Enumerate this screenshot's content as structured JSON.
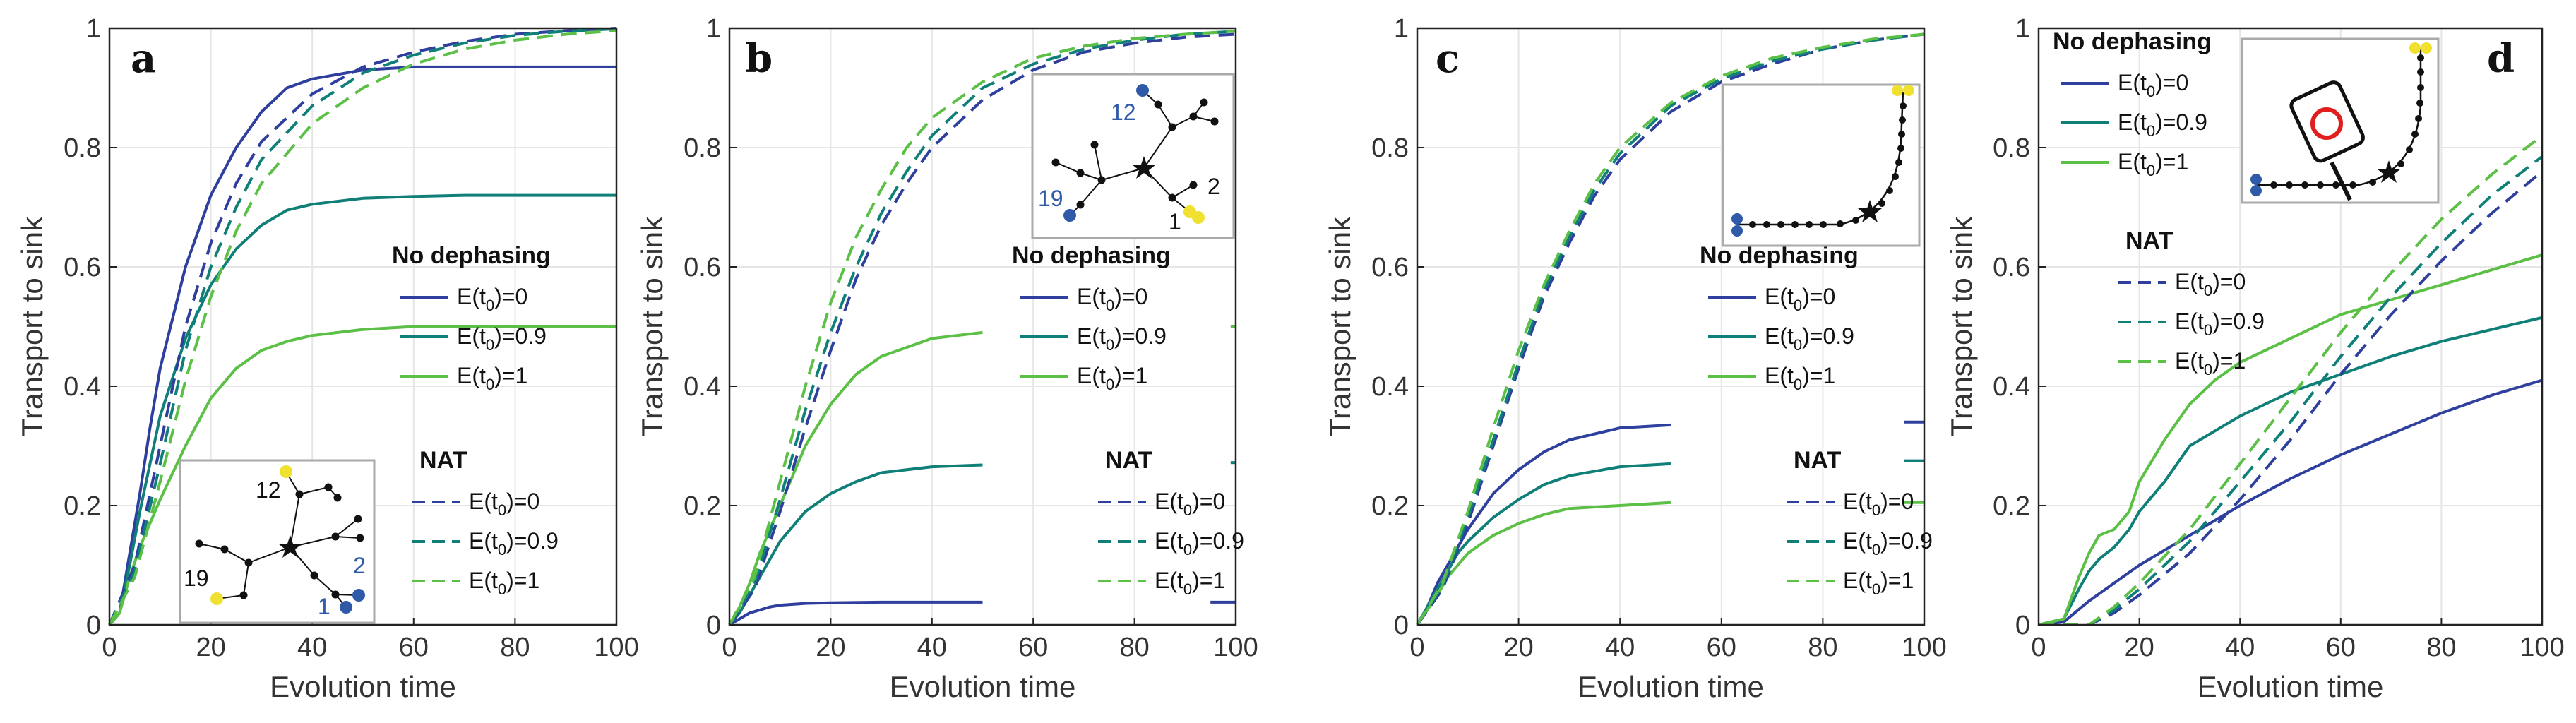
{
  "figure": {
    "axis_color": "#222222",
    "grid_color": "#e6e6e6",
    "colors": {
      "blue": "#2e3f9e",
      "teal": "#0f7f78",
      "green": "#5cc047",
      "node": "#111111",
      "blue_node": "#2e5aa8",
      "yellow_node": "#f0e030",
      "sign_red": "#e21e1e"
    },
    "legend": {
      "title_no_dephasing": "No dephasing",
      "title_nat": "NAT",
      "entries": [
        {
          "prefix": "E(t",
          "sub": "0",
          "suffix": ")=0",
          "color": "blue"
        },
        {
          "prefix": "E(t",
          "sub": "0",
          "suffix": ")=0.9",
          "color": "teal"
        },
        {
          "prefix": "E(t",
          "sub": "0",
          "suffix": ")=1",
          "color": "green"
        }
      ]
    },
    "inset_labels": {
      "a": [
        "12",
        "2",
        "19",
        "1"
      ],
      "b": [
        "12",
        "2",
        "19",
        "1"
      ]
    }
  },
  "chart_data": [
    {
      "panel": "a",
      "type": "line",
      "xlabel": "Evolution time",
      "ylabel": "Transport to sink",
      "xlim": [
        0,
        100
      ],
      "ylim": [
        0,
        1
      ],
      "xticks": [
        "0",
        "20",
        "40",
        "60",
        "80",
        "100"
      ],
      "yticks": [
        "0",
        "0.2",
        "0.4",
        "0.6",
        "0.8",
        "1"
      ],
      "series": [
        {
          "name": "No dephasing E(t0)=0",
          "style": "solid",
          "color": "blue",
          "x": [
            0,
            2,
            4,
            6,
            8,
            10,
            15,
            20,
            25,
            30,
            35,
            40,
            50,
            60,
            70,
            80,
            100
          ],
          "y": [
            0,
            0.02,
            0.12,
            0.22,
            0.33,
            0.43,
            0.6,
            0.72,
            0.8,
            0.86,
            0.9,
            0.915,
            0.93,
            0.935,
            0.935,
            0.935,
            0.935
          ]
        },
        {
          "name": "No dephasing E(t0)=0.9",
          "style": "solid",
          "color": "teal",
          "x": [
            0,
            2,
            4,
            6,
            8,
            10,
            15,
            20,
            25,
            30,
            35,
            40,
            50,
            60,
            70,
            80,
            100
          ],
          "y": [
            0,
            0.02,
            0.1,
            0.19,
            0.27,
            0.35,
            0.48,
            0.57,
            0.63,
            0.67,
            0.695,
            0.705,
            0.715,
            0.718,
            0.72,
            0.72,
            0.72
          ]
        },
        {
          "name": "No dephasing E(t0)=1",
          "style": "solid",
          "color": "green",
          "x": [
            0,
            2,
            4,
            6,
            8,
            10,
            15,
            20,
            25,
            30,
            35,
            40,
            50,
            60,
            70,
            80,
            100
          ],
          "y": [
            0,
            0.02,
            0.08,
            0.13,
            0.17,
            0.21,
            0.3,
            0.38,
            0.43,
            0.46,
            0.475,
            0.485,
            0.495,
            0.5,
            0.5,
            0.5,
            0.5
          ]
        },
        {
          "name": "NAT E(t0)=0",
          "style": "dashed",
          "color": "blue",
          "x": [
            0,
            5,
            10,
            15,
            20,
            25,
            30,
            40,
            50,
            60,
            70,
            80,
            90,
            100
          ],
          "y": [
            0,
            0.1,
            0.3,
            0.5,
            0.64,
            0.74,
            0.81,
            0.89,
            0.935,
            0.96,
            0.978,
            0.99,
            0.996,
            1.0
          ]
        },
        {
          "name": "NAT E(t0)=0.9",
          "style": "dashed",
          "color": "teal",
          "x": [
            0,
            5,
            10,
            15,
            20,
            25,
            30,
            40,
            50,
            60,
            70,
            80,
            90,
            100
          ],
          "y": [
            0,
            0.09,
            0.27,
            0.46,
            0.6,
            0.7,
            0.78,
            0.87,
            0.925,
            0.955,
            0.975,
            0.988,
            0.995,
            0.999
          ]
        },
        {
          "name": "NAT E(t0)=1",
          "style": "dashed",
          "color": "green",
          "x": [
            0,
            5,
            10,
            15,
            20,
            25,
            30,
            40,
            50,
            60,
            70,
            80,
            90,
            100
          ],
          "y": [
            0,
            0.08,
            0.24,
            0.41,
            0.55,
            0.66,
            0.74,
            0.84,
            0.9,
            0.94,
            0.965,
            0.98,
            0.99,
            0.996
          ]
        }
      ]
    },
    {
      "panel": "b",
      "type": "line",
      "xlabel": "Evolution time",
      "ylabel": "Transport to sink",
      "xlim": [
        0,
        100
      ],
      "ylim": [
        0,
        1
      ],
      "xticks": [
        "0",
        "20",
        "40",
        "60",
        "80",
        "100"
      ],
      "yticks": [
        "0",
        "0.2",
        "0.4",
        "0.6",
        "0.8",
        "1"
      ],
      "series": [
        {
          "name": "No dephasing E(t0)=0",
          "style": "solid",
          "color": "blue",
          "x": [
            0,
            2,
            4,
            6,
            8,
            10,
            15,
            20,
            30,
            40,
            50
          ],
          "y": [
            0,
            0.01,
            0.02,
            0.025,
            0.03,
            0.033,
            0.036,
            0.037,
            0.038,
            0.038,
            0.038
          ]
        },
        {
          "name": "No dephasing E(t0)=0.9",
          "style": "solid",
          "color": "teal",
          "x": [
            0,
            2,
            4,
            6,
            8,
            10,
            15,
            20,
            25,
            30,
            40,
            50
          ],
          "y": [
            0,
            0.02,
            0.05,
            0.08,
            0.11,
            0.14,
            0.19,
            0.22,
            0.24,
            0.255,
            0.265,
            0.268
          ]
        },
        {
          "name": "No dephasing E(t0)=1",
          "style": "solid",
          "color": "green",
          "x": [
            0,
            2,
            4,
            6,
            8,
            10,
            15,
            20,
            25,
            30,
            40,
            50
          ],
          "y": [
            0,
            0.03,
            0.07,
            0.12,
            0.16,
            0.2,
            0.3,
            0.37,
            0.42,
            0.45,
            0.48,
            0.49
          ]
        },
        {
          "name": "NAT E(t0)=0",
          "style": "dashed",
          "color": "blue",
          "x": [
            0,
            5,
            10,
            15,
            20,
            25,
            30,
            35,
            40,
            50,
            60,
            70,
            80,
            90,
            100
          ],
          "y": [
            0,
            0.06,
            0.19,
            0.33,
            0.46,
            0.58,
            0.67,
            0.74,
            0.8,
            0.88,
            0.93,
            0.96,
            0.975,
            0.985,
            0.99
          ]
        },
        {
          "name": "NAT E(t0)=0.9",
          "style": "dashed",
          "color": "teal",
          "x": [
            0,
            5,
            10,
            15,
            20,
            25,
            30,
            35,
            40,
            50,
            60,
            70,
            80,
            90,
            100
          ],
          "y": [
            0,
            0.07,
            0.21,
            0.36,
            0.49,
            0.6,
            0.69,
            0.76,
            0.82,
            0.9,
            0.94,
            0.965,
            0.98,
            0.99,
            0.995
          ]
        },
        {
          "name": "NAT E(t0)=1",
          "style": "dashed",
          "color": "green",
          "x": [
            0,
            5,
            10,
            15,
            20,
            25,
            30,
            35,
            40,
            50,
            60,
            70,
            80,
            90,
            100
          ],
          "y": [
            0,
            0.08,
            0.24,
            0.4,
            0.54,
            0.65,
            0.73,
            0.8,
            0.85,
            0.91,
            0.95,
            0.97,
            0.983,
            0.99,
            0.995
          ]
        },
        {
          "name": "E(t0)=0.9 asymptote",
          "style": "solid",
          "color": "teal",
          "x": [
            99,
            100
          ],
          "y": [
            0.272,
            0.272
          ]
        },
        {
          "name": "E(t0)=1 asymptote",
          "style": "solid",
          "color": "green",
          "x": [
            99,
            100
          ],
          "y": [
            0.5,
            0.5
          ]
        },
        {
          "name": "E(t0)=0 asymptote",
          "style": "solid",
          "color": "blue",
          "x": [
            95,
            100
          ],
          "y": [
            0.038,
            0.038
          ]
        }
      ]
    },
    {
      "panel": "c",
      "type": "line",
      "xlabel": "Evolution time",
      "ylabel": "Transport to sink",
      "xlim": [
        0,
        100
      ],
      "ylim": [
        0,
        1
      ],
      "xticks": [
        "0",
        "20",
        "40",
        "60",
        "80",
        "100"
      ],
      "yticks": [
        "0",
        "0.2",
        "0.4",
        "0.6",
        "0.8",
        "1"
      ],
      "series": [
        {
          "name": "No dephasing E(t0)=0",
          "style": "solid",
          "color": "blue",
          "x": [
            0,
            2,
            4,
            6,
            8,
            10,
            15,
            20,
            25,
            30,
            40,
            50
          ],
          "y": [
            0,
            0.03,
            0.07,
            0.1,
            0.13,
            0.16,
            0.22,
            0.26,
            0.29,
            0.31,
            0.33,
            0.335
          ]
        },
        {
          "name": "No dephasing E(t0)=0.9",
          "style": "solid",
          "color": "teal",
          "x": [
            0,
            2,
            4,
            6,
            8,
            10,
            15,
            20,
            25,
            30,
            40,
            50
          ],
          "y": [
            0,
            0.03,
            0.06,
            0.09,
            0.12,
            0.14,
            0.18,
            0.21,
            0.235,
            0.25,
            0.265,
            0.27
          ]
        },
        {
          "name": "No dephasing E(t0)=1",
          "style": "solid",
          "color": "green",
          "x": [
            0,
            2,
            4,
            6,
            8,
            10,
            15,
            20,
            25,
            30,
            40,
            50
          ],
          "y": [
            0,
            0.025,
            0.05,
            0.08,
            0.1,
            0.12,
            0.15,
            0.17,
            0.185,
            0.195,
            0.2,
            0.205
          ]
        },
        {
          "name": "NAT E(t0)=0",
          "style": "dashed",
          "color": "blue",
          "x": [
            0,
            5,
            10,
            15,
            20,
            25,
            30,
            35,
            40,
            50,
            60,
            70,
            80,
            90,
            100
          ],
          "y": [
            0,
            0.06,
            0.17,
            0.3,
            0.43,
            0.55,
            0.64,
            0.72,
            0.78,
            0.86,
            0.91,
            0.94,
            0.965,
            0.98,
            0.99
          ]
        },
        {
          "name": "NAT E(t0)=0.9",
          "style": "dashed",
          "color": "teal",
          "x": [
            0,
            5,
            10,
            15,
            20,
            25,
            30,
            35,
            40,
            50,
            60,
            70,
            80,
            90,
            100
          ],
          "y": [
            0,
            0.065,
            0.18,
            0.31,
            0.44,
            0.56,
            0.65,
            0.73,
            0.79,
            0.87,
            0.915,
            0.945,
            0.965,
            0.98,
            0.99
          ]
        },
        {
          "name": "NAT E(t0)=1",
          "style": "dashed",
          "color": "green",
          "x": [
            0,
            5,
            10,
            15,
            20,
            25,
            30,
            35,
            40,
            50,
            60,
            70,
            80,
            90,
            100
          ],
          "y": [
            0,
            0.07,
            0.19,
            0.33,
            0.46,
            0.57,
            0.66,
            0.74,
            0.8,
            0.875,
            0.92,
            0.95,
            0.968,
            0.982,
            0.99
          ]
        },
        {
          "name": "E(t0)=0 asymptote",
          "style": "solid",
          "color": "blue",
          "x": [
            96,
            100
          ],
          "y": [
            0.34,
            0.34
          ]
        },
        {
          "name": "E(t0)=0.9 asymptote",
          "style": "solid",
          "color": "teal",
          "x": [
            96,
            100
          ],
          "y": [
            0.275,
            0.275
          ]
        },
        {
          "name": "E(t0)=1 asymptote",
          "style": "solid",
          "color": "green",
          "x": [
            96,
            100
          ],
          "y": [
            0.205,
            0.205
          ]
        }
      ]
    },
    {
      "panel": "d",
      "type": "line",
      "xlabel": "Evolution time",
      "ylabel": "Transport to sink",
      "xlim": [
        0,
        100
      ],
      "ylim": [
        0,
        1
      ],
      "xticks": [
        "0",
        "20",
        "40",
        "60",
        "80",
        "100"
      ],
      "yticks": [
        "0",
        "0.2",
        "0.4",
        "0.6",
        "0.8",
        "1"
      ],
      "series": [
        {
          "name": "No dephasing E(t0)=0",
          "style": "solid",
          "color": "blue",
          "x": [
            0,
            5,
            10,
            15,
            20,
            30,
            40,
            50,
            60,
            70,
            80,
            90,
            100
          ],
          "y": [
            0,
            0.005,
            0.04,
            0.07,
            0.1,
            0.15,
            0.2,
            0.245,
            0.285,
            0.32,
            0.355,
            0.385,
            0.41
          ]
        },
        {
          "name": "No dephasing E(t0)=0.9",
          "style": "solid",
          "color": "teal",
          "x": [
            0,
            5,
            8,
            10,
            12,
            15,
            18,
            20,
            25,
            30,
            40,
            50,
            60,
            70,
            80,
            90,
            100
          ],
          "y": [
            0,
            0.01,
            0.06,
            0.09,
            0.11,
            0.13,
            0.16,
            0.19,
            0.24,
            0.3,
            0.35,
            0.39,
            0.42,
            0.45,
            0.475,
            0.495,
            0.515
          ]
        },
        {
          "name": "No dephasing E(t0)=1",
          "style": "solid",
          "color": "green",
          "x": [
            0,
            5,
            8,
            10,
            12,
            15,
            18,
            20,
            25,
            30,
            35,
            40,
            50,
            60,
            70,
            80,
            90,
            100
          ],
          "y": [
            0,
            0.01,
            0.08,
            0.12,
            0.15,
            0.16,
            0.19,
            0.24,
            0.31,
            0.37,
            0.41,
            0.44,
            0.48,
            0.52,
            0.545,
            0.57,
            0.595,
            0.62
          ]
        },
        {
          "name": "NAT E(t0)=0",
          "style": "dashed",
          "color": "blue",
          "x": [
            0,
            10,
            15,
            20,
            30,
            40,
            50,
            60,
            70,
            80,
            90,
            100
          ],
          "y": [
            0,
            0.0,
            0.02,
            0.05,
            0.12,
            0.21,
            0.31,
            0.42,
            0.52,
            0.61,
            0.69,
            0.76
          ]
        },
        {
          "name": "NAT E(t0)=0.9",
          "style": "dashed",
          "color": "teal",
          "x": [
            0,
            10,
            15,
            20,
            30,
            40,
            50,
            60,
            70,
            80,
            90,
            100
          ],
          "y": [
            0,
            0.0,
            0.025,
            0.06,
            0.14,
            0.24,
            0.34,
            0.45,
            0.55,
            0.64,
            0.72,
            0.785
          ]
        },
        {
          "name": "NAT E(t0)=1",
          "style": "dashed",
          "color": "green",
          "x": [
            0,
            10,
            15,
            20,
            30,
            40,
            50,
            60,
            70,
            80,
            90,
            100
          ],
          "y": [
            0,
            0.0,
            0.03,
            0.07,
            0.16,
            0.27,
            0.38,
            0.49,
            0.59,
            0.68,
            0.755,
            0.82
          ]
        }
      ]
    }
  ]
}
